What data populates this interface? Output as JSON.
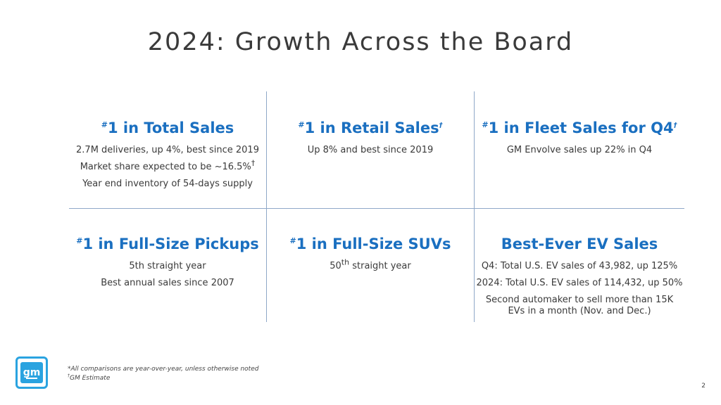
{
  "title": "2024: Growth Across the Board",
  "cells": [
    {
      "hash": "#",
      "heading": "1 in Total Sales",
      "mark": "",
      "lines": [
        "2.7M deliveries, up 4%, best since 2019",
        "Market share expected to be ~16.5%",
        "Year end inventory of 54-days supply"
      ],
      "line_marks": [
        "",
        "†",
        ""
      ]
    },
    {
      "hash": "#",
      "heading": "1 in Retail Sales",
      "mark": "†",
      "lines": [
        "Up 8% and best since 2019"
      ]
    },
    {
      "hash": "#",
      "heading": "1 in Fleet Sales for Q4",
      "mark": "†",
      "lines": [
        "GM Envolve sales up 22% in Q4"
      ]
    },
    {
      "hash": "#",
      "heading": "1 in Full-Size Pickups",
      "mark": "",
      "lines": [
        "5th straight year",
        "Best annual sales since 2007"
      ]
    },
    {
      "hash": "#",
      "heading": "1 in Full-Size SUVs",
      "mark": "",
      "lines_parts": {
        "num": "50",
        "sup": "th",
        "rest": " straight year"
      }
    },
    {
      "heading": "Best-Ever EV Sales",
      "lines": [
        "Q4: Total U.S. EV sales of 43,982, up 125%",
        "2024: Total U.S. EV sales of 114,432, up 50%",
        "Second automaker to sell more than 15K",
        "EVs in a month (Nov. and Dec.)"
      ]
    }
  ],
  "footnotes": {
    "line1": "*All comparisons are year-over-year, unless otherwise noted",
    "mark": "†",
    "line2": "GM Estimate"
  },
  "logo_text": "gm",
  "page_number": "2",
  "colors": {
    "heading_blue": "#1a6fc0",
    "divider": "#8fa8c8",
    "logo_blue": "#2aa3e0"
  }
}
